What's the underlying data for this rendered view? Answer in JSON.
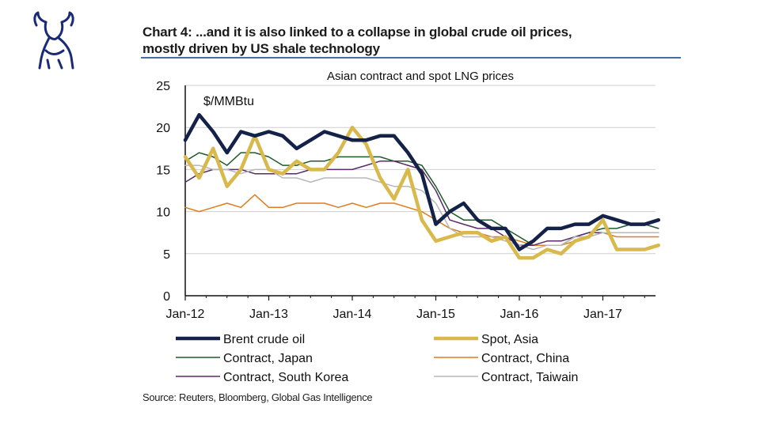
{
  "header": {
    "title_line1": "Chart 4: ...and it is also linked to a collapse in global crude oil prices,",
    "title_line2": "mostly driven by US shale technology",
    "logo_icon": "bull-icon",
    "accent_color": "#1a2a7a"
  },
  "source": "Source: Reuters, Bloomberg, Global Gas Intelligence",
  "chart_data": {
    "type": "line",
    "title": "Asian contract and spot LNG prices",
    "unit_label": "$/MMBtu",
    "xlabel": "",
    "ylabel": "",
    "ylim": [
      0,
      25
    ],
    "yticks": [
      0,
      5,
      10,
      15,
      20,
      25
    ],
    "xlim": [
      "2012-01",
      "2017-09"
    ],
    "xticks": [
      "Jan-12",
      "Jan-13",
      "Jan-14",
      "Jan-15",
      "Jan-16",
      "Jan-17"
    ],
    "grid": "horizontal",
    "legend_position": "bottom",
    "x": [
      "2012-01",
      "2012-03",
      "2012-05",
      "2012-07",
      "2012-09",
      "2012-11",
      "2013-01",
      "2013-03",
      "2013-05",
      "2013-07",
      "2013-09",
      "2013-11",
      "2014-01",
      "2014-03",
      "2014-05",
      "2014-07",
      "2014-09",
      "2014-11",
      "2015-01",
      "2015-03",
      "2015-05",
      "2015-07",
      "2015-09",
      "2015-11",
      "2016-01",
      "2016-03",
      "2016-05",
      "2016-07",
      "2016-09",
      "2016-11",
      "2017-01",
      "2017-03",
      "2017-05",
      "2017-07",
      "2017-09"
    ],
    "series": [
      {
        "name": "Brent crude oil",
        "color": "#14224a",
        "width": 4.5,
        "values": [
          18.5,
          21.5,
          19.5,
          17,
          19.5,
          19,
          19.5,
          19,
          17.5,
          18.5,
          19.5,
          19,
          18.5,
          18.5,
          19,
          19,
          17,
          14.5,
          8.5,
          10,
          11,
          9,
          8,
          8,
          5.5,
          6.5,
          8,
          8,
          8.5,
          8.5,
          9.5,
          9,
          8.5,
          8.5,
          9
        ]
      },
      {
        "name": "Spot, Asia",
        "color": "#d9b84c",
        "width": 4.5,
        "values": [
          16.5,
          14,
          17.5,
          13,
          15,
          19,
          15,
          14.5,
          16,
          15,
          15,
          17,
          20,
          18,
          14,
          11.5,
          15,
          9,
          6.5,
          7,
          7.5,
          7.5,
          6.5,
          7,
          4.5,
          4.5,
          5.5,
          5,
          6.5,
          7,
          9,
          5.5,
          5.5,
          5.5,
          6
        ]
      },
      {
        "name": "Contract, Japan",
        "color": "#1e5a2a",
        "width": 1.5,
        "values": [
          16,
          17,
          16.5,
          15.5,
          17,
          17,
          16.5,
          15.5,
          15.5,
          16,
          16,
          16.5,
          16.5,
          16.5,
          16.5,
          16,
          16,
          15.5,
          13,
          10,
          9,
          9,
          9,
          8,
          7,
          6,
          6,
          6,
          7,
          7.5,
          8,
          8,
          8.5,
          8.5,
          8
        ]
      },
      {
        "name": "Contract, China",
        "color": "#e07b1e",
        "width": 1.5,
        "values": [
          10.5,
          10,
          10.5,
          11,
          10.5,
          12,
          10.5,
          10.5,
          11,
          11,
          11,
          10.5,
          11,
          10.5,
          11,
          11,
          10.5,
          10,
          9,
          8,
          7.5,
          7.5,
          7,
          7,
          6.5,
          6,
          6,
          6,
          6.5,
          7,
          7.5,
          7,
          7,
          7,
          7
        ]
      },
      {
        "name": "Contract, South Korea",
        "color": "#5a2a6a",
        "width": 1.5,
        "values": [
          13.5,
          14.5,
          15,
          15,
          15,
          14.5,
          14.5,
          14.5,
          14.5,
          15,
          15,
          15,
          15,
          15.5,
          16,
          16,
          15.5,
          15,
          12.5,
          9,
          8.5,
          8,
          8,
          7,
          6,
          6,
          6.5,
          6.5,
          7,
          7.5,
          7.5,
          7.5,
          7.5,
          7.5,
          7.5
        ]
      },
      {
        "name": "Contract, Taiwain",
        "color": "#b8b8b8",
        "width": 1.5,
        "values": [
          15.5,
          15.5,
          15,
          15,
          14.5,
          15,
          15,
          14,
          14,
          13.5,
          14,
          14,
          14,
          14,
          13.5,
          13,
          13,
          12.5,
          11,
          8,
          7,
          7,
          7,
          6.5,
          6,
          5.5,
          6,
          6,
          7,
          7,
          7.5,
          7.5,
          7.5,
          7.5,
          7.5
        ]
      }
    ]
  }
}
